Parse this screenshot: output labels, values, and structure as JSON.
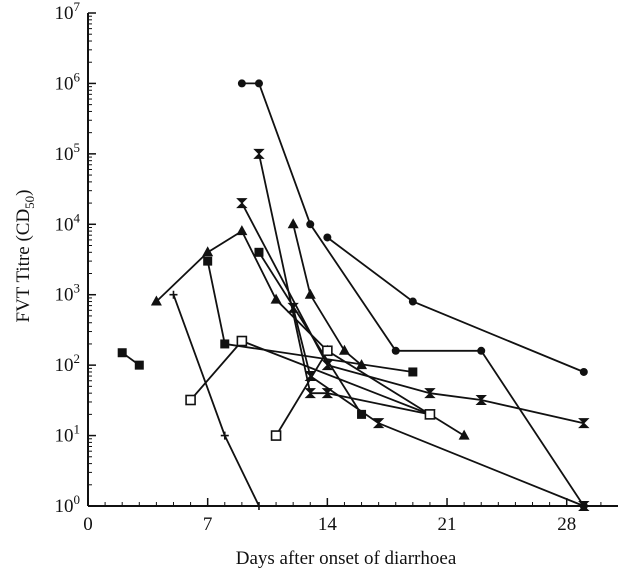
{
  "chart_data": {
    "type": "line",
    "xlabel": "Days after onset of diarrhoea",
    "ylabel": "FVT Titre (CD",
    "ylabel_subscript": "50",
    "ylabel_close": ")",
    "x_ticks": [
      0,
      7,
      14,
      21,
      28
    ],
    "y_ticks": [
      {
        "value": 1,
        "base": "10",
        "exp": "0"
      },
      {
        "value": 10,
        "base": "10",
        "exp": "1"
      },
      {
        "value": 100,
        "base": "10",
        "exp": "2"
      },
      {
        "value": 1000,
        "base": "10",
        "exp": "3"
      },
      {
        "value": 10000,
        "base": "10",
        "exp": "4"
      },
      {
        "value": 100000,
        "base": "10",
        "exp": "5"
      },
      {
        "value": 1000000,
        "base": "10",
        "exp": "6"
      },
      {
        "value": 10000000,
        "base": "10",
        "exp": "7"
      }
    ],
    "xlim": [
      0,
      31
    ],
    "ylim": [
      1,
      10000000
    ],
    "y_scale": "log",
    "grid": false,
    "series": [
      {
        "marker": "circle",
        "points": [
          {
            "x": 9,
            "y": 1000000
          },
          {
            "x": 10,
            "y": 1000000
          },
          {
            "x": 13,
            "y": 10000
          },
          {
            "x": 18,
            "y": 160
          },
          {
            "x": 23,
            "y": 160
          },
          {
            "x": 29,
            "y": 1
          }
        ]
      },
      {
        "marker": "circle",
        "points": [
          {
            "x": 14,
            "y": 6500
          },
          {
            "x": 19,
            "y": 800
          },
          {
            "x": 29,
            "y": 80
          }
        ]
      },
      {
        "marker": "bowtie",
        "points": [
          {
            "x": 10,
            "y": 100000
          },
          {
            "x": 13,
            "y": 40
          },
          {
            "x": 14,
            "y": 40
          },
          {
            "x": 20,
            "y": 20
          }
        ]
      },
      {
        "marker": "bowtie",
        "points": [
          {
            "x": 9,
            "y": 20000
          },
          {
            "x": 14,
            "y": 100
          },
          {
            "x": 20,
            "y": 40
          },
          {
            "x": 23,
            "y": 32
          },
          {
            "x": 29,
            "y": 15
          }
        ]
      },
      {
        "marker": "bowtie",
        "points": [
          {
            "x": 12,
            "y": 650
          },
          {
            "x": 13,
            "y": 70
          },
          {
            "x": 17,
            "y": 15
          },
          {
            "x": 29,
            "y": 1
          }
        ]
      },
      {
        "marker": "triangle",
        "points": [
          {
            "x": 4,
            "y": 800
          },
          {
            "x": 7,
            "y": 4000
          },
          {
            "x": 9,
            "y": 8000
          },
          {
            "x": 11,
            "y": 850
          },
          {
            "x": 14,
            "y": 160
          },
          {
            "x": 22,
            "y": 10
          }
        ]
      },
      {
        "marker": "triangle",
        "points": [
          {
            "x": 12,
            "y": 10000
          },
          {
            "x": 13,
            "y": 1000
          },
          {
            "x": 15,
            "y": 160
          },
          {
            "x": 16,
            "y": 100
          }
        ]
      },
      {
        "marker": "square",
        "points": [
          {
            "x": 7,
            "y": 3000
          },
          {
            "x": 8,
            "y": 200
          },
          {
            "x": 19,
            "y": 80
          }
        ]
      },
      {
        "marker": "square",
        "points": [
          {
            "x": 10,
            "y": 4000
          },
          {
            "x": 16,
            "y": 20
          }
        ]
      },
      {
        "marker": "square",
        "points": [
          {
            "x": 2,
            "y": 150
          },
          {
            "x": 3,
            "y": 100
          }
        ]
      },
      {
        "marker": "open-square",
        "points": [
          {
            "x": 6,
            "y": 32
          },
          {
            "x": 9,
            "y": 220
          },
          {
            "x": 20,
            "y": 20
          }
        ]
      },
      {
        "marker": "open-square",
        "points": [
          {
            "x": 11,
            "y": 10
          },
          {
            "x": 14,
            "y": 160
          }
        ]
      },
      {
        "marker": "plus",
        "points": [
          {
            "x": 5,
            "y": 1000
          },
          {
            "x": 8,
            "y": 10
          },
          {
            "x": 10,
            "y": 1
          }
        ]
      }
    ]
  }
}
